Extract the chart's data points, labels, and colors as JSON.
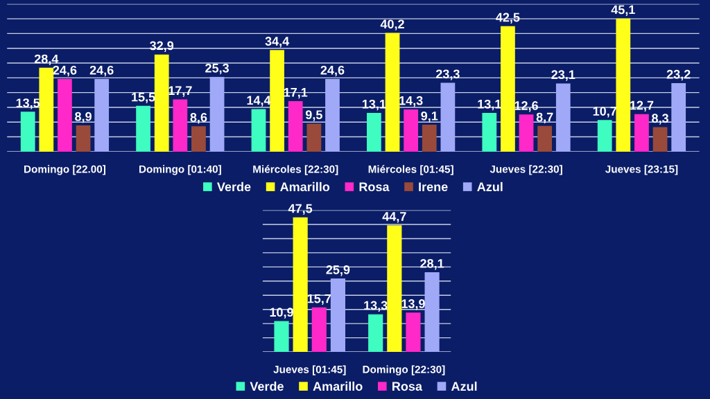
{
  "chart_data": [
    {
      "type": "bar",
      "categories": [
        "Domingo [22.00]",
        "Domingo [01:40]",
        "Miércoles [22:30]",
        "Miércoles [01:45]",
        "Jueves [22:30]",
        "Jueves [23:15]"
      ],
      "series": [
        {
          "name": "Verde",
          "color": "#3ffcc0",
          "values": [
            13.5,
            15.5,
            14.4,
            13.1,
            13.1,
            10.7
          ],
          "value_labels": [
            "13,5",
            "15,5",
            "14,4",
            "13,1",
            "13,1",
            "10,7"
          ]
        },
        {
          "name": "Amarillo",
          "color": "#ffff1a",
          "values": [
            28.4,
            32.9,
            34.4,
            40.2,
            42.5,
            45.1
          ],
          "value_labels": [
            "28,4",
            "32,9",
            "34,4",
            "40,2",
            "42,5",
            "45,1"
          ]
        },
        {
          "name": "Rosa",
          "color": "#ff28c8",
          "values": [
            24.6,
            17.7,
            17.1,
            14.3,
            12.6,
            12.7
          ],
          "value_labels": [
            "24,6",
            "17,7",
            "17,1",
            "14,3",
            "12,6",
            "12,7"
          ]
        },
        {
          "name": "Irene",
          "color": "#9a4a3a",
          "values": [
            8.9,
            8.6,
            9.5,
            9.1,
            8.7,
            8.3
          ],
          "value_labels": [
            "8,9",
            "8,6",
            "9,5",
            "9,1",
            "8,7",
            "8,3"
          ]
        },
        {
          "name": "Azul",
          "color": "#a0a8f8",
          "values": [
            24.6,
            25.3,
            24.6,
            23.3,
            23.1,
            23.2
          ],
          "value_labels": [
            "24,6",
            "25,3",
            "24,6",
            "23,3",
            "23,1",
            "23,2"
          ]
        }
      ],
      "ylim": [
        0,
        50
      ],
      "yticks": [
        {
          "value": 0,
          "label": null
        },
        {
          "value": 5,
          "label": null
        },
        {
          "value": 10,
          "label": null
        },
        {
          "value": 15,
          "label": null
        },
        {
          "value": 20,
          "label": null
        },
        {
          "value": 25,
          "label": null
        },
        {
          "value": 30,
          "label": null
        },
        {
          "value": 35,
          "label": null
        },
        {
          "value": 40,
          "label": null
        },
        {
          "value": 45,
          "label": null
        },
        {
          "value": 50,
          "label": null
        }
      ],
      "grid": "y",
      "legend": "bottom",
      "tick_labels": "x"
    },
    {
      "type": "bar",
      "categories": [
        "Jueves [01:45]",
        "Domingo [22:30]"
      ],
      "series": [
        {
          "name": "Verde",
          "color": "#3ffcc0",
          "values": [
            10.9,
            13.3
          ],
          "value_labels": [
            "10,9",
            "13,3"
          ]
        },
        {
          "name": "Amarillo",
          "color": "#ffff1a",
          "values": [
            47.5,
            44.7
          ],
          "value_labels": [
            "47,5",
            "44,7"
          ]
        },
        {
          "name": "Rosa",
          "color": "#ff28c8",
          "values": [
            15.7,
            13.9
          ],
          "value_labels": [
            "15,7",
            "13,9"
          ]
        },
        {
          "name": "Azul",
          "color": "#a0a8f8",
          "values": [
            25.9,
            28.1
          ],
          "value_labels": [
            "25,9",
            "28,1"
          ]
        }
      ],
      "ylim": [
        0,
        50
      ],
      "yticks": [
        {
          "value": 0,
          "label": null
        },
        {
          "value": 5,
          "label": null
        },
        {
          "value": 10,
          "label": null
        },
        {
          "value": 15,
          "label": null
        },
        {
          "value": 20,
          "label": null
        },
        {
          "value": 25,
          "label": null
        },
        {
          "value": 30,
          "label": null
        },
        {
          "value": 35,
          "label": null
        },
        {
          "value": 40,
          "label": null
        },
        {
          "value": 45,
          "label": null
        },
        {
          "value": 50,
          "label": null
        }
      ],
      "grid": "y",
      "legend": "bottom",
      "tick_labels": "x"
    }
  ]
}
